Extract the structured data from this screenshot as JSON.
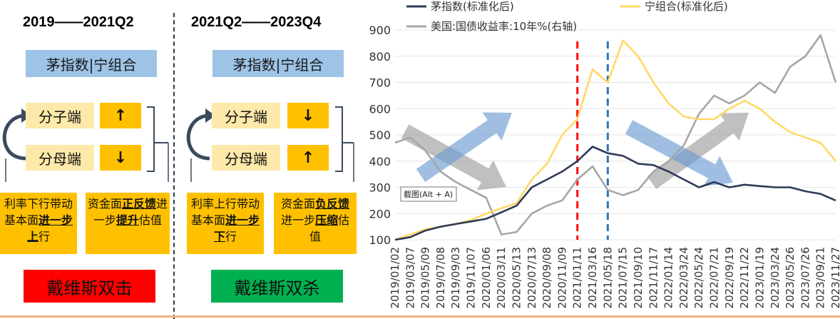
{
  "left_panel": {
    "period": "2019——2021Q2",
    "header": "茅指数|宁组合",
    "numerator_label": "分子端",
    "numerator_arrow": "↑",
    "denominator_label": "分母端",
    "denominator_arrow": "↓",
    "box1": {
      "pre": "利率下行带动基本面",
      "em1": "进一步上",
      "post": "行"
    },
    "box2": {
      "pre": "资金面",
      "em1": "正反馈",
      "mid": "进一步",
      "em2": "提升",
      "post": "估值"
    },
    "result": "戴维斯双击",
    "result_color": "#ff0000"
  },
  "right_panel": {
    "period": "2021Q2——2023Q4",
    "header": "茅指数|宁组合",
    "numerator_label": "分子端",
    "numerator_arrow": "↓",
    "denominator_label": "分母端",
    "denominator_arrow": "↑",
    "box1": {
      "pre": "利率上行带动基本面",
      "em1": "进一步下",
      "post": "行"
    },
    "box2": {
      "pre": "资金面",
      "em1": "负反馈",
      "mid": "进一步",
      "em2": "压缩",
      "post": "估值"
    },
    "result": "戴维斯双杀",
    "result_color": "#00b050"
  },
  "colors": {
    "navy": "#2e3b55",
    "gold": "#ffd966",
    "gray": "#a6a6a6",
    "red_line": "#ff0000",
    "blue_line": "#2e75b6",
    "arrow_blue": "#6c9bd2",
    "arrow_gray": "#9e9e9e"
  },
  "tooltip": "截图(Alt + A)",
  "chart_data": {
    "type": "line",
    "legend": [
      "茅指数(标准化后)",
      "宁组合(标准化后)",
      "美国:国债收益率:10年%(右轴)"
    ],
    "legend_placement": "top",
    "ylim": [
      100,
      900
    ],
    "y_ticks": [
      100,
      200,
      300,
      400,
      500,
      600,
      700,
      800,
      900
    ],
    "x_tick_labels": [
      "2019/01/02",
      "2019/03/07",
      "2019/05/09",
      "2019/07/08",
      "2019/09/03",
      "2019/11/07",
      "2020/01/06",
      "2020/03/11",
      "2020/05/13",
      "2020/07/13",
      "2020/09/08",
      "2020/11/09",
      "2021/01/11",
      "2021/03/16",
      "2021/05/18",
      "2021/07/15",
      "2021/09/10",
      "2021/11/17",
      "2022/01/14",
      "2022/03/24",
      "2022/05/24",
      "2022/07/21",
      "2022/09/19",
      "2022/11/22",
      "2023/01/19",
      "2023/03/24",
      "2023/05/26",
      "2023/07/26",
      "2023/09/21",
      "2023/11/27"
    ],
    "vertical_markers": [
      {
        "x": "2021/01/11",
        "color": "red"
      },
      {
        "x": "2021/05/18",
        "color": "blue"
      }
    ],
    "grid": true,
    "series": [
      {
        "name": "茅指数(标准化后)",
        "values": [
          100,
          110,
          135,
          150,
          160,
          170,
          180,
          205,
          230,
          300,
          330,
          360,
          400,
          455,
          430,
          420,
          390,
          385,
          360,
          330,
          300,
          320,
          300,
          310,
          305,
          300,
          300,
          285,
          275,
          250
        ]
      },
      {
        "name": "宁组合(标准化后)",
        "values": [
          100,
          120,
          140,
          150,
          160,
          175,
          200,
          220,
          240,
          330,
          390,
          500,
          560,
          750,
          700,
          860,
          800,
          700,
          620,
          570,
          560,
          560,
          600,
          630,
          600,
          550,
          510,
          490,
          470,
          400
        ]
      },
      {
        "name": "美国:国债收益率:10年%(右轴)",
        "values": [
          470,
          490,
          440,
          360,
          320,
          290,
          260,
          120,
          130,
          200,
          230,
          250,
          330,
          380,
          290,
          270,
          290,
          360,
          400,
          460,
          580,
          650,
          620,
          650,
          700,
          660,
          760,
          800,
          880,
          700
        ]
      }
    ]
  }
}
